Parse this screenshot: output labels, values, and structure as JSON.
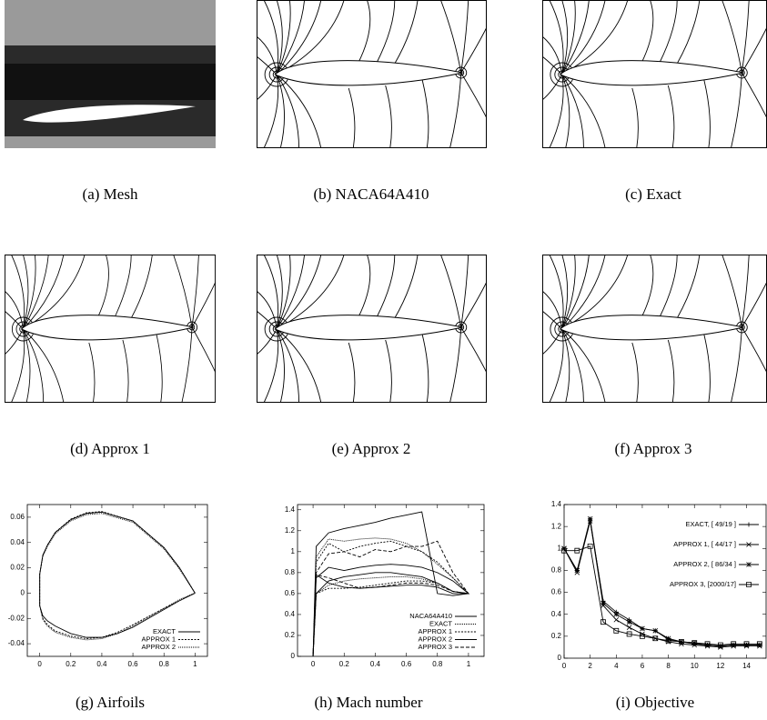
{
  "panels": [
    {
      "caption": "(a) Mesh"
    },
    {
      "caption": "(b) NACA64A410"
    },
    {
      "caption": "(c) Exact"
    },
    {
      "caption": "(d) Approx 1"
    },
    {
      "caption": "(e) Approx 2"
    },
    {
      "caption": "(f) Approx 3"
    },
    {
      "caption": "(g) Airfoils"
    },
    {
      "caption": "(h) Mach number"
    },
    {
      "caption": "(i) Objective"
    }
  ],
  "chart_data": [
    {
      "type": "line",
      "x": [
        1,
        0.9,
        0.8,
        0.6,
        0.4,
        0.3,
        0.2,
        0.1,
        0.05,
        0.02,
        0,
        0,
        0.02,
        0.05,
        0.1,
        0.2,
        0.3,
        0.4,
        0.5,
        0.6,
        0.8,
        0.9,
        1
      ],
      "series": [
        {
          "name": "EXACT",
          "color": "#000",
          "dash": "solid",
          "values": [
            0,
            0.02,
            0.036,
            0.057,
            0.064,
            0.063,
            0.058,
            0.048,
            0.038,
            0.03,
            0.015,
            -0.01,
            -0.018,
            -0.022,
            -0.026,
            -0.032,
            -0.035,
            -0.035,
            -0.032,
            -0.027,
            -0.013,
            -0.006,
            0
          ]
        },
        {
          "name": "APPROX 1",
          "color": "#000",
          "dash": "dotted",
          "values": [
            0,
            0.02,
            0.036,
            0.057,
            0.0645,
            0.0635,
            0.0585,
            0.048,
            0.038,
            0.03,
            0.015,
            -0.01,
            -0.02,
            -0.025,
            -0.03,
            -0.034,
            -0.036,
            -0.035,
            -0.031,
            -0.025,
            -0.012,
            -0.006,
            0
          ]
        },
        {
          "name": "APPROX 2",
          "color": "#000",
          "dash": "fine-dotted",
          "values": [
            0,
            0.019,
            0.035,
            0.056,
            0.063,
            0.062,
            0.057,
            0.047,
            0.037,
            0.029,
            0.015,
            -0.01,
            -0.021,
            -0.026,
            -0.031,
            -0.035,
            -0.037,
            -0.036,
            -0.032,
            -0.026,
            -0.012,
            -0.005,
            0
          ]
        }
      ],
      "xlim": [
        -0.08,
        1.08
      ],
      "ylim": [
        -0.05,
        0.07
      ],
      "xticks": [
        0,
        0.2,
        0.4,
        0.6,
        0.8,
        1
      ],
      "yticks": [
        -0.04,
        -0.02,
        0,
        0.02,
        0.04,
        0.06
      ],
      "legend": "lower right"
    },
    {
      "type": "line",
      "x": [
        0,
        0.02,
        0.1,
        0.2,
        0.3,
        0.4,
        0.5,
        0.6,
        0.7,
        0.8,
        0.9,
        1,
        0.9,
        0.8,
        0.7,
        0.6,
        0.5,
        0.4,
        0.3,
        0.2,
        0.1,
        0.02,
        0
      ],
      "series": [
        {
          "name": "NACA64A410",
          "color": "#000",
          "dash": "solid",
          "values": [
            0,
            1.05,
            1.18,
            1.22,
            1.25,
            1.28,
            1.32,
            1.35,
            1.38,
            0.6,
            0.58,
            0.6,
            0.62,
            0.7,
            0.76,
            0.78,
            0.8,
            0.8,
            0.78,
            0.76,
            0.72,
            0.6,
            0
          ]
        },
        {
          "name": "EXACT",
          "color": "#000",
          "dash": "fine-dotted",
          "values": [
            0,
            0.95,
            1.12,
            1.1,
            1.12,
            1.13,
            1.12,
            1.08,
            1.0,
            0.88,
            0.75,
            0.6,
            0.62,
            0.7,
            0.74,
            0.76,
            0.76,
            0.75,
            0.74,
            0.72,
            0.68,
            0.6,
            0
          ]
        },
        {
          "name": "APPROX 1",
          "color": "#000",
          "dash": "dotted",
          "values": [
            0,
            0.9,
            1.08,
            1.0,
            1.05,
            1.08,
            1.1,
            1.05,
            1.0,
            0.9,
            0.75,
            0.6,
            0.62,
            0.7,
            0.72,
            0.72,
            0.7,
            0.68,
            0.66,
            0.65,
            0.65,
            0.6,
            0
          ]
        },
        {
          "name": "APPROX 2",
          "color": "#000",
          "dash": "solid",
          "values": [
            0,
            0.75,
            0.85,
            0.82,
            0.85,
            0.87,
            0.88,
            0.87,
            0.85,
            0.8,
            0.72,
            0.6,
            0.6,
            0.66,
            0.68,
            0.68,
            0.67,
            0.66,
            0.65,
            0.66,
            0.7,
            0.78,
            0
          ]
        },
        {
          "name": "APPROX 3",
          "color": "#000",
          "dash": "dashed",
          "values": [
            0,
            0.8,
            0.98,
            1.0,
            0.95,
            1.02,
            1.0,
            1.05,
            1.05,
            1.1,
            0.8,
            0.6,
            0.62,
            0.68,
            0.7,
            0.7,
            0.68,
            0.66,
            0.65,
            0.7,
            0.75,
            0.78,
            0
          ]
        }
      ],
      "xlim": [
        -0.1,
        1.1
      ],
      "ylim": [
        0,
        1.45
      ],
      "xticks": [
        0,
        0.2,
        0.4,
        0.6,
        0.8,
        1
      ],
      "yticks": [
        0,
        0.2,
        0.4,
        0.6,
        0.8,
        1,
        1.2,
        1.4
      ],
      "legend": "lower right"
    },
    {
      "type": "line",
      "x": [
        0,
        1,
        2,
        3,
        4,
        5,
        6,
        7,
        8,
        9,
        10,
        11,
        12,
        13,
        14,
        15
      ],
      "series": [
        {
          "name": "EXACT, [ 49/19 ]",
          "color": "#000",
          "dash": "solid",
          "marker": "plus",
          "values": [
            1,
            0.8,
            1.25,
            0.52,
            0.42,
            0.35,
            0.27,
            0.25,
            0.17,
            0.15,
            0.13,
            0.12,
            0.11,
            0.12,
            0.12,
            0.12
          ]
        },
        {
          "name": "APPROX 1, [ 44/17 ]",
          "color": "#000",
          "dash": "solid",
          "marker": "cross",
          "values": [
            1,
            0.78,
            1.25,
            0.48,
            0.35,
            0.28,
            0.22,
            0.18,
            0.15,
            0.13,
            0.12,
            0.11,
            0.1,
            0.11,
            0.11,
            0.11
          ]
        },
        {
          "name": "APPROX 2, [ 86/34 ]",
          "color": "#000",
          "dash": "solid",
          "marker": "star",
          "values": [
            1,
            0.8,
            1.27,
            0.5,
            0.4,
            0.33,
            0.27,
            0.25,
            0.18,
            0.15,
            0.14,
            0.12,
            0.11,
            0.12,
            0.12,
            0.12
          ]
        },
        {
          "name": "APPROX 3, [2000/17]",
          "color": "#000",
          "dash": "solid",
          "marker": "square",
          "values": [
            0.98,
            0.98,
            1.02,
            0.33,
            0.25,
            0.22,
            0.2,
            0.18,
            0.16,
            0.15,
            0.14,
            0.13,
            0.12,
            0.13,
            0.13,
            0.13
          ]
        }
      ],
      "xlim": [
        0,
        15.5
      ],
      "ylim": [
        0,
        1.4
      ],
      "xticks": [
        0,
        2,
        4,
        6,
        8,
        10,
        12,
        14
      ],
      "yticks": [
        0,
        0.2,
        0.4,
        0.6,
        0.8,
        1,
        1.2,
        1.4
      ],
      "legend": "upper right"
    }
  ]
}
